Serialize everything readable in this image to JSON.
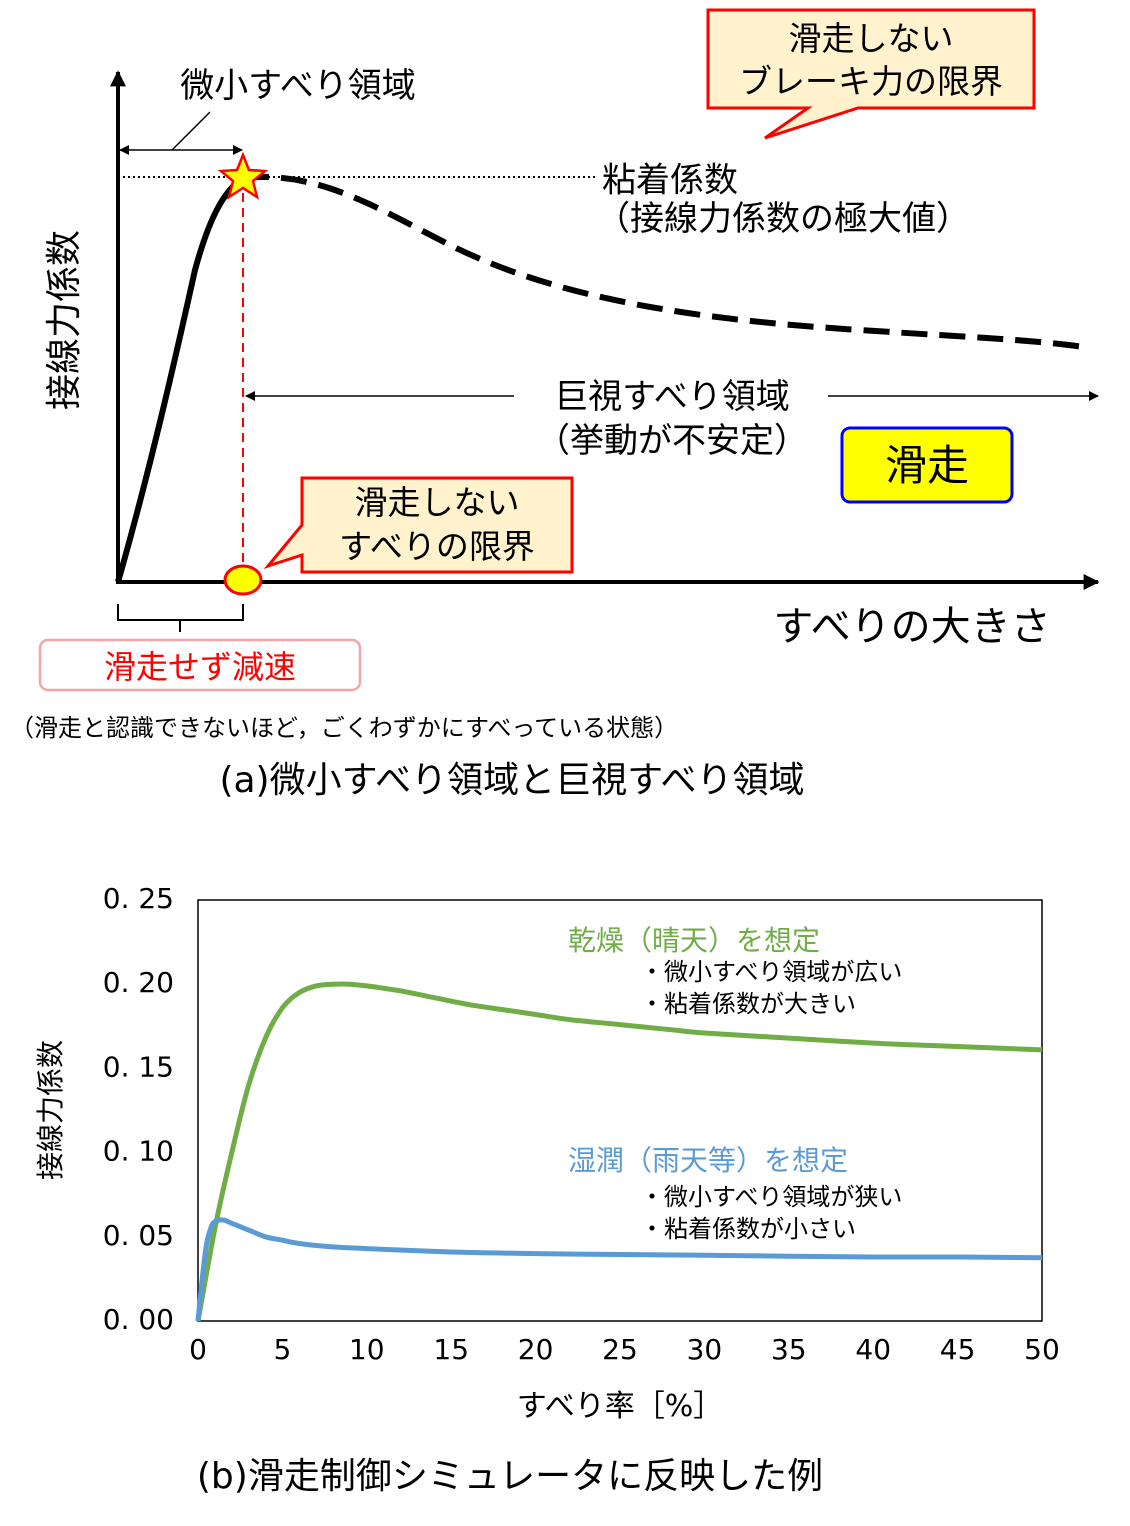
{
  "colors": {
    "dry": "#70AD47",
    "wet": "#5B9BD5",
    "red": "#FF0000",
    "callout_fill": "#FFF2CC",
    "badge_fill": "#FFFF00",
    "badge_border": "#0000FF",
    "pink_border": "#F4A6A6"
  },
  "panel_a": {
    "y_label": "接線力係数",
    "x_label": "すべりの大きさ",
    "micro_region": "微小すべり領域",
    "adhesion_label": "粘着係数",
    "adhesion_sub": "（接線力係数の極大値）",
    "macro_region": "巨視すべり領域",
    "macro_sub": "（挙動が不安定）",
    "callout_brake_l1": "滑走しない",
    "callout_brake_l2": "ブレーキ力の限界",
    "callout_slip_l1": "滑走しない",
    "callout_slip_l2": "すべりの限界",
    "slide_badge": "滑走",
    "decel_label": "滑走せず減速",
    "note": "（滑走と認識できないほど，ごくわずかにすべっている状態）",
    "caption": "(a)微小すべり領域と巨視すべり領域"
  },
  "chart_data": {
    "type": "line",
    "xlabel": "すべり率［%］",
    "ylabel": "接線力係数",
    "xlim": [
      0,
      50
    ],
    "ylim": [
      0,
      0.25
    ],
    "x_ticks": [
      "0",
      "5",
      "10",
      "15",
      "20",
      "25",
      "30",
      "35",
      "40",
      "45",
      "50"
    ],
    "y_ticks": [
      "0. 00",
      "0. 05",
      "0. 10",
      "0. 15",
      "0. 20",
      "0. 25"
    ],
    "series": [
      {
        "name": "乾燥（晴天）を想定",
        "color": "#70AD47",
        "notes": [
          "・微小すべり領域が広い",
          "・粘着係数が大きい"
        ],
        "x": [
          0,
          1,
          2,
          3,
          4,
          5,
          6,
          7,
          8,
          9,
          10,
          12,
          14,
          16,
          18,
          20,
          22,
          25,
          28,
          30,
          35,
          40,
          45,
          50
        ],
        "y": [
          0,
          0.055,
          0.1,
          0.14,
          0.168,
          0.186,
          0.195,
          0.199,
          0.2,
          0.2,
          0.199,
          0.196,
          0.192,
          0.188,
          0.185,
          0.182,
          0.179,
          0.176,
          0.173,
          0.171,
          0.168,
          0.165,
          0.163,
          0.161
        ]
      },
      {
        "name": "湿潤（雨天等）を想定",
        "color": "#5B9BD5",
        "notes": [
          "・微小すべり領域が狭い",
          "・粘着係数が小さい"
        ],
        "x": [
          0,
          0.25,
          0.5,
          0.75,
          1,
          1.5,
          2,
          3,
          4,
          5,
          6,
          8,
          10,
          15,
          20,
          25,
          30,
          35,
          40,
          45,
          50
        ],
        "y": [
          0,
          0.025,
          0.045,
          0.055,
          0.059,
          0.06,
          0.058,
          0.054,
          0.05,
          0.048,
          0.046,
          0.044,
          0.043,
          0.041,
          0.04,
          0.0395,
          0.039,
          0.0385,
          0.038,
          0.038,
          0.0375
        ]
      }
    ],
    "caption": "(b)滑走制御シミュレータに反映した例"
  }
}
